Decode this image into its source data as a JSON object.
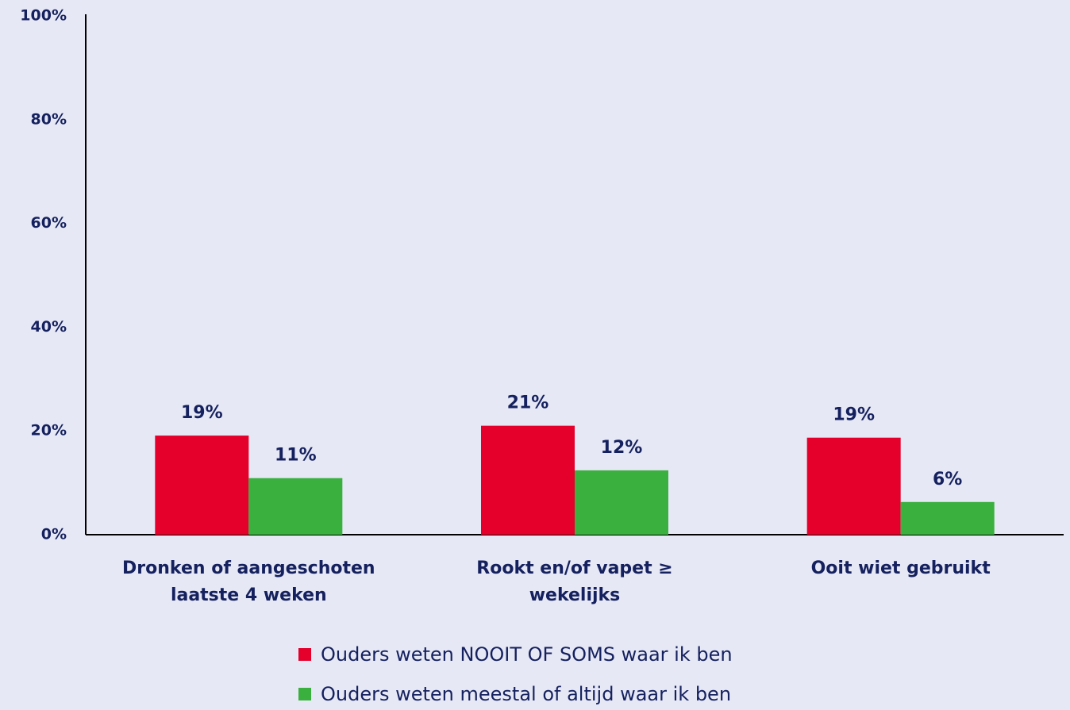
{
  "chart_data": {
    "type": "bar",
    "categories": [
      "Dronken of aangeschoten laatste 4 weken",
      "Rookt en/of vapet ≥ wekelijks",
      "Ooit wiet gebruikt"
    ],
    "series": [
      {
        "name": "Ouders weten NOOIT OF SOMS waar ik ben",
        "color": "#e4002b",
        "values": [
          19.1,
          21.0,
          18.7
        ],
        "value_labels": [
          "19%",
          "21%",
          "19%"
        ]
      },
      {
        "name": "Ouders weten meestal of altijd waar ik ben",
        "color": "#3ab03e",
        "values": [
          10.9,
          12.4,
          6.3
        ],
        "value_labels": [
          "11%",
          "12%",
          "6%"
        ]
      }
    ],
    "ylim": [
      0,
      100
    ],
    "yticks": [
      {
        "value": 0,
        "label": "0%"
      },
      {
        "value": 20,
        "label": "20%"
      },
      {
        "value": 40,
        "label": "40%"
      },
      {
        "value": 60,
        "label": "60%"
      },
      {
        "value": 80,
        "label": "80%"
      },
      {
        "value": 100,
        "label": "100%"
      }
    ],
    "grid": false,
    "legend": "bottom"
  }
}
